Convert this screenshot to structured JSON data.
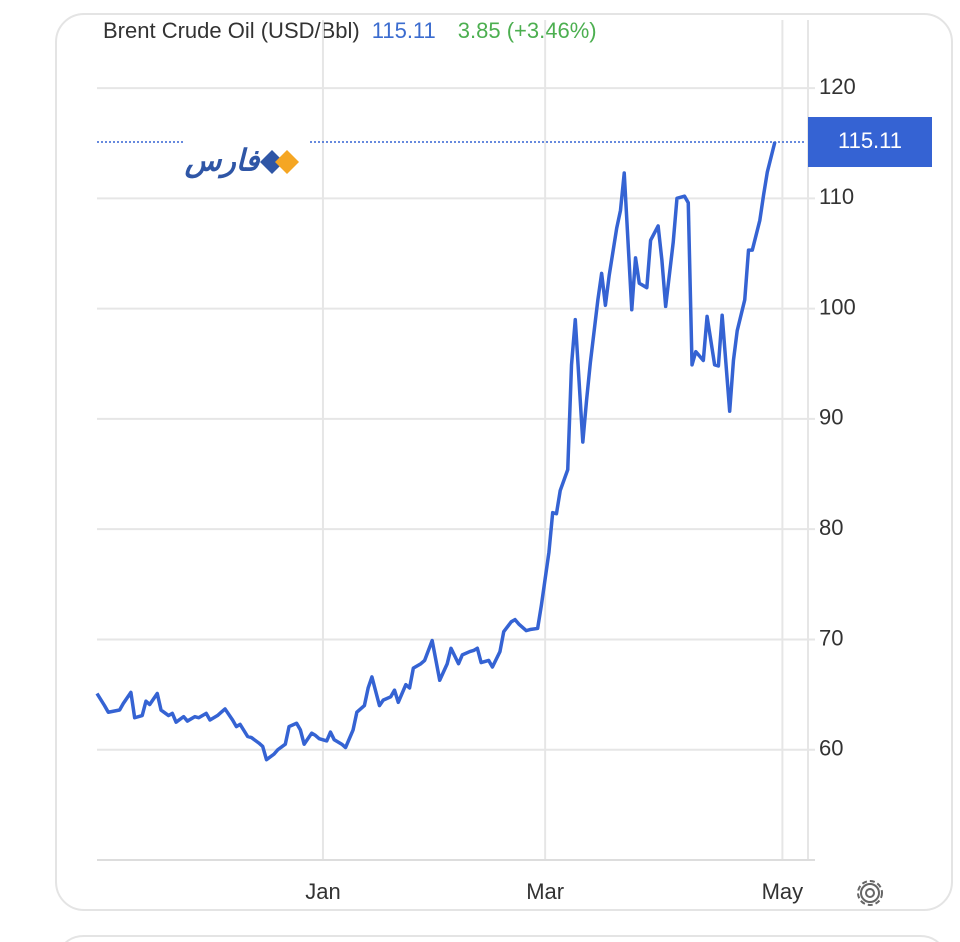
{
  "chart_data": {
    "type": "line",
    "title": "Brent Crude Oil (USD/Bbl)",
    "change_label": "3.85 (+3.46%)",
    "watermark": "فارس",
    "x": [
      -60,
      -58,
      -57,
      -54,
      -53,
      -51,
      -50,
      -48,
      -47,
      -46,
      -44,
      -43,
      -41,
      -40,
      -39,
      -37,
      -36,
      -34,
      -33,
      -31,
      -30,
      -28,
      -27,
      -26,
      -24,
      -23,
      -22,
      -20,
      -19,
      -17,
      -16,
      -15,
      -13,
      -12,
      -10,
      -9,
      -7,
      -6,
      -5,
      -3,
      -2,
      -1,
      1,
      2,
      3,
      5,
      6,
      8,
      9,
      11,
      12,
      13,
      15,
      16,
      18,
      19,
      20,
      22,
      23,
      24,
      26,
      27,
      29,
      31,
      33,
      34,
      36,
      37,
      39,
      40,
      41,
      42,
      44,
      45,
      47,
      48,
      50,
      51,
      52,
      54,
      55,
      57,
      58,
      60,
      61,
      62,
      63,
      65,
      66,
      67,
      69,
      70,
      71,
      73,
      74,
      75,
      76,
      78,
      79,
      80,
      82,
      83,
      84,
      86,
      87,
      89,
      90,
      91,
      93,
      94,
      96,
      97,
      98,
      99,
      101,
      102,
      104,
      105,
      106,
      108,
      109,
      110,
      112,
      113,
      114,
      116,
      117,
      118,
      120
    ],
    "series": [
      {
        "name": "Brent Crude Oil",
        "color": "#3563d3",
        "values": [
          65.1,
          64.0,
          63.4,
          63.6,
          64.2,
          65.2,
          62.9,
          63.1,
          64.4,
          64.1,
          65.1,
          63.6,
          63.1,
          63.3,
          62.5,
          63.0,
          62.6,
          63.0,
          62.9,
          63.3,
          62.7,
          63.1,
          63.4,
          63.7,
          62.7,
          62.1,
          62.3,
          61.2,
          61.1,
          60.6,
          60.3,
          59.1,
          59.6,
          60.0,
          60.5,
          62.1,
          62.4,
          61.8,
          60.5,
          61.5,
          61.3,
          61.0,
          60.8,
          61.6,
          60.9,
          60.5,
          60.2,
          61.8,
          63.4,
          64.0,
          65.6,
          66.6,
          64.0,
          64.5,
          64.8,
          65.4,
          64.3,
          65.9,
          65.6,
          67.4,
          67.8,
          68.1,
          69.9,
          66.3,
          67.8,
          69.2,
          67.8,
          68.6,
          68.9,
          69.0,
          69.2,
          67.9,
          68.1,
          67.5,
          68.9,
          70.7,
          71.6,
          71.8,
          71.4,
          70.8,
          70.9,
          71.0,
          73.1,
          77.9,
          81.5,
          81.4,
          83.5,
          85.4,
          94.9,
          99.0,
          87.9,
          91.7,
          95.1,
          100.8,
          103.2,
          100.3,
          103.0,
          107.3,
          108.9,
          112.3,
          99.9,
          104.6,
          102.3,
          101.9,
          106.2,
          107.5,
          104.4,
          100.2,
          106.0,
          110.0,
          110.2,
          109.6,
          94.9,
          96.1,
          95.3,
          99.3,
          94.9,
          94.8,
          99.4,
          90.7,
          95.3,
          98.0,
          100.8,
          105.3,
          105.3,
          108.0,
          110.3,
          112.4,
          115.11
        ]
      }
    ],
    "xlim": [
      -60,
      128
    ],
    "xticks": [
      {
        "value": 0,
        "label": "Jan"
      },
      {
        "value": 59,
        "label": "Mar"
      },
      {
        "value": 122,
        "label": "May"
      }
    ],
    "ylim": [
      50,
      123
    ],
    "yticks": [
      60,
      70,
      80,
      90,
      100,
      110,
      120
    ],
    "grid": true
  }
}
